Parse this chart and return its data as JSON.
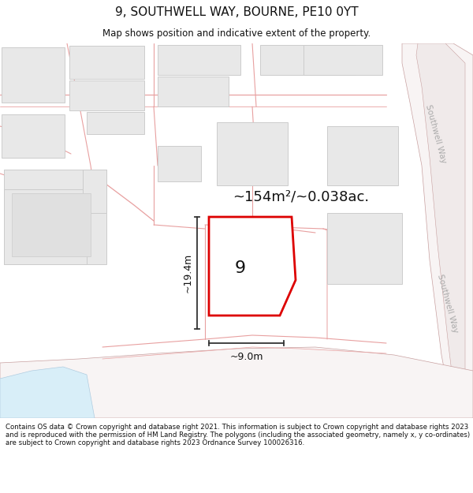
{
  "title": "9, SOUTHWELL WAY, BOURNE, PE10 0YT",
  "subtitle": "Map shows position and indicative extent of the property.",
  "footer": "Contains OS data © Crown copyright and database right 2021. This information is subject to Crown copyright and database rights 2023 and is reproduced with the permission of HM Land Registry. The polygons (including the associated geometry, namely x, y co-ordinates) are subject to Crown copyright and database rights 2023 Ordnance Survey 100026316.",
  "area_label": "~154m²/~0.038ac.",
  "number_label": "9",
  "dim_height_label": "~19.4m",
  "dim_width_label": "~9.0m",
  "road_label": "Southwell Way",
  "bg_color": "#ffffff",
  "map_bg": "#ffffff",
  "road_color": "#f5f0f0",
  "road_stroke": "#d0a0a0",
  "building_fill": "#e8e8e8",
  "building_stroke": "#cccccc",
  "plot_fill": "#ffffff",
  "plot_stroke": "#dd0000",
  "plot_stroke_lw": 2.0,
  "boundary_color": "#e8a0a0",
  "dim_color": "#333333",
  "text_color": "#111111",
  "road_text_color": "#aaaaaa"
}
